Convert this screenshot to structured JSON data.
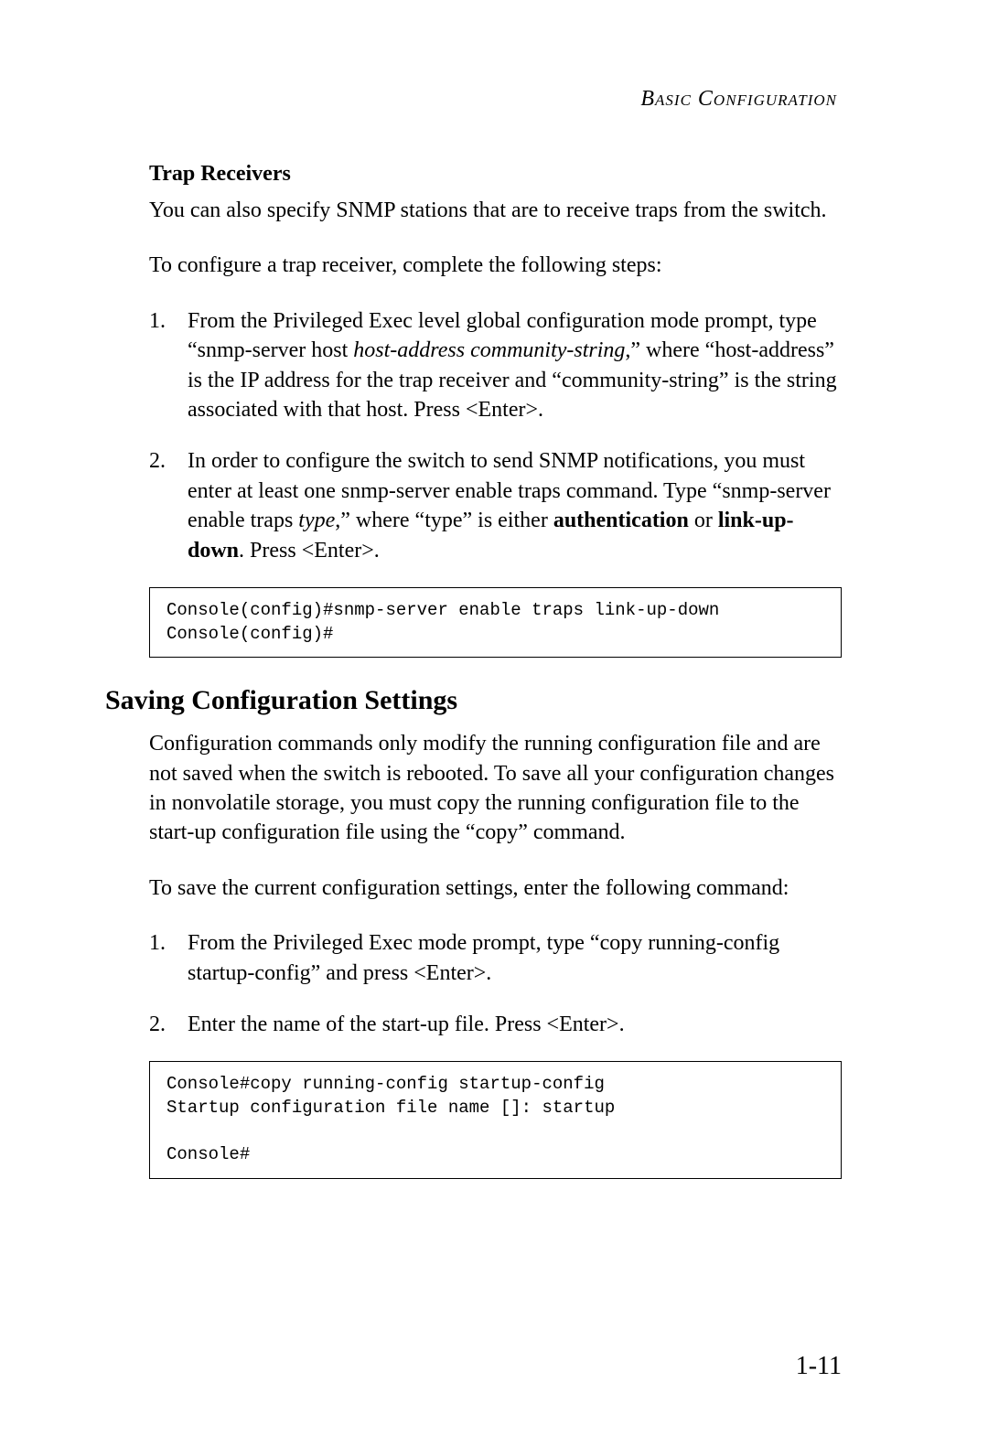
{
  "header": {
    "title": "Basic Configuration"
  },
  "section1": {
    "subheading": "Trap Receivers",
    "para1": "You can also specify SNMP stations that are to receive traps from the switch.",
    "para2": "To configure a trap receiver, complete the following steps:",
    "step1_a": "From the Privileged Exec level global configuration mode prompt, type “snmp-server host ",
    "step1_italic": "host-address community-string",
    "step1_b": ",” where “host-address” is the IP address for the trap receiver and “community-string” is the string associated with that host. Press <Enter>.",
    "step2_a": "In order to configure the switch to send SNMP notifications, you must enter at least one snmp-server enable traps command. Type “snmp-server enable traps ",
    "step2_italic": "type",
    "step2_b": ",” where “type” is either ",
    "step2_bold1": "authentication",
    "step2_c": " or ",
    "step2_bold2": "link-up-down",
    "step2_d": ". Press <Enter>.",
    "console": "Console(config)#snmp-server enable traps link-up-down\nConsole(config)#"
  },
  "section2": {
    "heading": "Saving Configuration Settings",
    "para1": "Configuration commands only modify the running configuration file and are not saved when the switch is rebooted. To save all your configuration changes in nonvolatile storage, you must copy the running configuration file to the start-up configuration file using the “copy” command.",
    "para2": "To save the current configuration settings, enter the following command:",
    "step1": "From the Privileged Exec mode prompt, type “copy running-config startup-config” and press <Enter>.",
    "step2": "Enter the name of the start-up file. Press <Enter>.",
    "console": "Console#copy running-config startup-config\nStartup configuration file name []: startup\n\nConsole#"
  },
  "pageNumber": "1-11"
}
